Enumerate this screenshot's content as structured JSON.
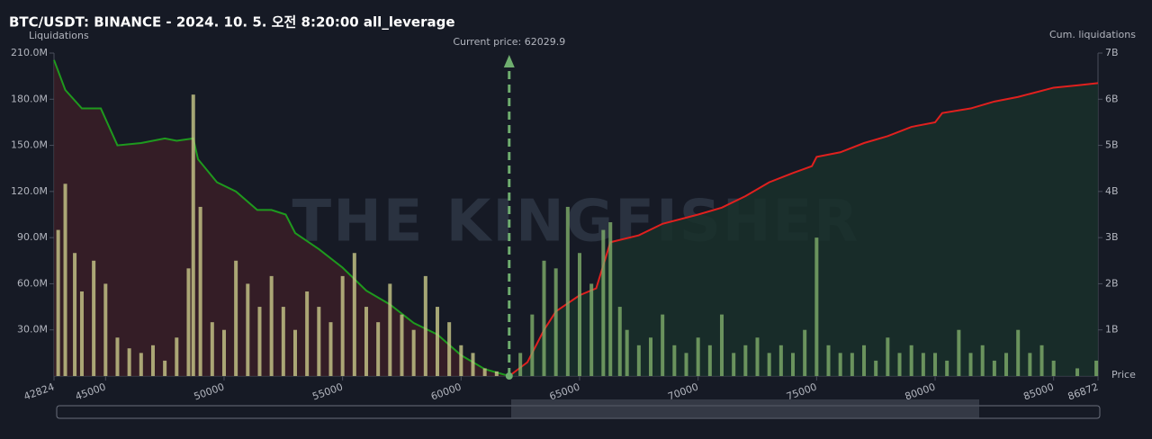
{
  "chart_data": {
    "type": "bar",
    "title": "BTC/USDT: BINANCE - 2024. 10. 5. 오전 8:20:00 all_leverage",
    "y_label": "Liquidations",
    "y2_label": "Cum. liquidations",
    "x_label": "Price",
    "watermark": "THE KINGFISHER",
    "annotation": "Current price: 62029.9",
    "current_price": 62029.9,
    "xlim": [
      42824,
      86872
    ],
    "xticks": [
      42824,
      45000,
      50000,
      55000,
      60000,
      65000,
      70000,
      75000,
      80000,
      85000,
      86872
    ],
    "ylim": [
      0,
      210
    ],
    "yticks": [
      {
        "value": 30,
        "label": "30.0M"
      },
      {
        "value": 60,
        "label": "60.0M"
      },
      {
        "value": 90,
        "label": "90.0M"
      },
      {
        "value": 120,
        "label": "120.0M"
      },
      {
        "value": 150,
        "label": "150.0M"
      },
      {
        "value": 180,
        "label": "180.0M"
      },
      {
        "value": 210,
        "label": "210.0M"
      }
    ],
    "y2lim": [
      0,
      7
    ],
    "y2ticks": [
      {
        "value": 1,
        "label": "1B"
      },
      {
        "value": 2,
        "label": "2B"
      },
      {
        "value": 3,
        "label": "3B"
      },
      {
        "value": 4,
        "label": "4B"
      },
      {
        "value": 5,
        "label": "5B"
      },
      {
        "value": 6,
        "label": "6B"
      },
      {
        "value": 7,
        "label": "7B"
      }
    ],
    "series": [
      {
        "type": "bar",
        "color": "#c9c98a",
        "x": [
          43000,
          43300,
          43700,
          44000,
          44500,
          45000,
          45500,
          46000,
          46500,
          47000,
          47500,
          48000,
          48500,
          48700,
          49000,
          49500,
          50000,
          50500,
          51000,
          51500,
          52000,
          52500,
          53000,
          53500,
          54000,
          54500,
          55000,
          55500,
          56000,
          56500,
          57000,
          57500,
          58000,
          58500,
          59000,
          59500,
          60000,
          60500,
          61000,
          61500
        ],
        "values": [
          95,
          125,
          80,
          55,
          75,
          60,
          25,
          18,
          15,
          20,
          10,
          25,
          70,
          183,
          110,
          35,
          30,
          75,
          60,
          45,
          65,
          45,
          30,
          55,
          45,
          35,
          65,
          80,
          45,
          35,
          60,
          40,
          30,
          65,
          45,
          35,
          20,
          15,
          5,
          3
        ]
      },
      {
        "type": "bar",
        "color": "#7fae6a",
        "x": [
          62500,
          63000,
          63500,
          64000,
          64500,
          65000,
          65500,
          66000,
          66300,
          66700,
          67000,
          67500,
          68000,
          68500,
          69000,
          69500,
          70000,
          70500,
          71000,
          71500,
          72000,
          72500,
          73000,
          73500,
          74000,
          74500,
          75000,
          75500,
          76000,
          76500,
          77000,
          77500,
          78000,
          78500,
          79000,
          79500,
          80000,
          80500,
          81000,
          81500,
          82000,
          82500,
          83000,
          83500,
          84000,
          84500,
          85000,
          86000,
          86800
        ],
        "values": [
          15,
          40,
          75,
          70,
          110,
          80,
          60,
          95,
          100,
          45,
          30,
          20,
          25,
          40,
          20,
          15,
          25,
          20,
          40,
          15,
          20,
          25,
          15,
          20,
          15,
          30,
          90,
          20,
          15,
          15,
          20,
          10,
          25,
          15,
          20,
          15,
          15,
          10,
          30,
          15,
          20,
          10,
          15,
          30,
          15,
          20,
          10,
          5,
          10
        ]
      },
      {
        "type": "line",
        "axis": "y2",
        "color": "#1e9a1e",
        "fill": "#3a1f27",
        "x": [
          42824,
          43300,
          44000,
          44800,
          45500,
          46500,
          47500,
          48000,
          48700,
          48900,
          49700,
          50500,
          51400,
          52000,
          52600,
          53000,
          54000,
          55000,
          56000,
          57000,
          58000,
          59000,
          60000,
          61000,
          62029.9
        ],
        "values": [
          6.85,
          6.2,
          5.8,
          5.8,
          5.0,
          5.05,
          5.15,
          5.1,
          5.15,
          4.7,
          4.2,
          4.0,
          3.6,
          3.6,
          3.5,
          3.1,
          2.75,
          2.35,
          1.85,
          1.55,
          1.15,
          0.9,
          0.45,
          0.15,
          0
        ]
      },
      {
        "type": "line",
        "axis": "y2",
        "color": "#e0201e",
        "fill": "#19302a",
        "x": [
          62029.9,
          62800,
          63500,
          64000,
          65000,
          65700,
          66300,
          67500,
          68500,
          70000,
          71000,
          72000,
          73000,
          74000,
          74800,
          75000,
          76000,
          77000,
          78000,
          79000,
          80000,
          80300,
          81500,
          82500,
          83500,
          85000,
          86000,
          86872
        ],
        "values": [
          0,
          0.3,
          1.0,
          1.4,
          1.75,
          1.9,
          2.9,
          3.05,
          3.3,
          3.5,
          3.65,
          3.9,
          4.2,
          4.4,
          4.55,
          4.75,
          4.85,
          5.05,
          5.2,
          5.4,
          5.5,
          5.7,
          5.8,
          5.95,
          6.05,
          6.25,
          6.3,
          6.35
        ]
      }
    ]
  }
}
